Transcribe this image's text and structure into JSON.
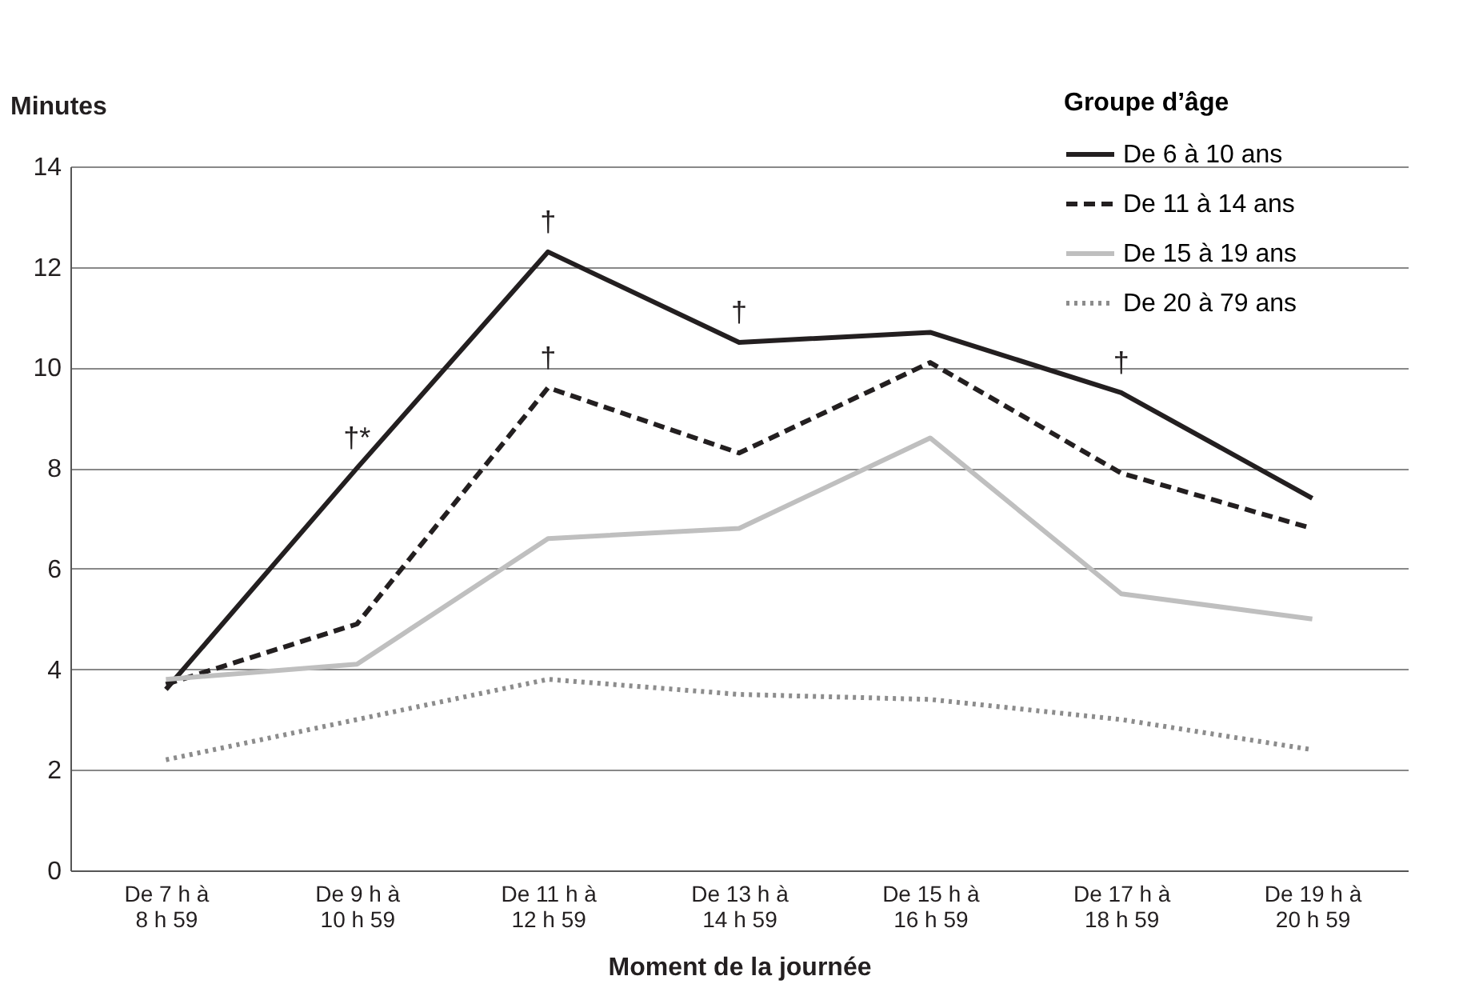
{
  "chart_data": {
    "type": "line",
    "xlabel": "Moment de la journée",
    "ylabel": "Minutes",
    "legend_title": "Groupe d’âge",
    "legend": "top right",
    "grid": "y",
    "marker": "none",
    "categories": [
      "De 7 h à\n8 h 59",
      "De 9 h à\n10 h 59",
      "De 11 h à\n12 h 59",
      "De 13 h à\n14 h 59",
      "De 15 h à\n16 h 59",
      "De 17 h à\n18 h 59",
      "De 19 h à\n20 h 59"
    ],
    "ylim": [
      0,
      14
    ],
    "yticks": [
      0,
      2,
      4,
      6,
      8,
      10,
      12,
      14
    ],
    "series": [
      {
        "name": "De 6 à 10 ans",
        "color": "#231f20",
        "line_style": "solid",
        "values": [
          3.6,
          8.0,
          12.3,
          10.5,
          10.7,
          9.5,
          7.4
        ]
      },
      {
        "name": "De 11 à 14 ans",
        "color": "#231f20",
        "line_style": "dashed",
        "values": [
          3.7,
          4.9,
          9.6,
          8.3,
          10.1,
          7.9,
          6.8
        ]
      },
      {
        "name": "De 15 à 19 ans",
        "color": "#bfbfbf",
        "line_style": "solid",
        "values": [
          3.8,
          4.1,
          6.6,
          6.8,
          8.6,
          5.5,
          5.0
        ]
      },
      {
        "name": "De 20 à 79 ans",
        "color": "#8c8c8c",
        "line_style": "dotted",
        "values": [
          2.2,
          3.0,
          3.8,
          3.5,
          3.4,
          3.0,
          2.4
        ]
      }
    ],
    "annotations": [
      {
        "text": "†*",
        "x": "De 9 h à\n10 h 59",
        "y": 8.0
      },
      {
        "text": "†",
        "x": "De 11 h à\n12 h 59",
        "y": 12.3
      },
      {
        "text": "†",
        "x": "De 11 h à\n12 h 59",
        "y": 9.6
      },
      {
        "text": "†",
        "x": "De 13 h à\n14 h 59",
        "y": 10.5
      },
      {
        "text": "†",
        "x": "De 17 h à\n18 h 59",
        "y": 9.5
      }
    ]
  }
}
